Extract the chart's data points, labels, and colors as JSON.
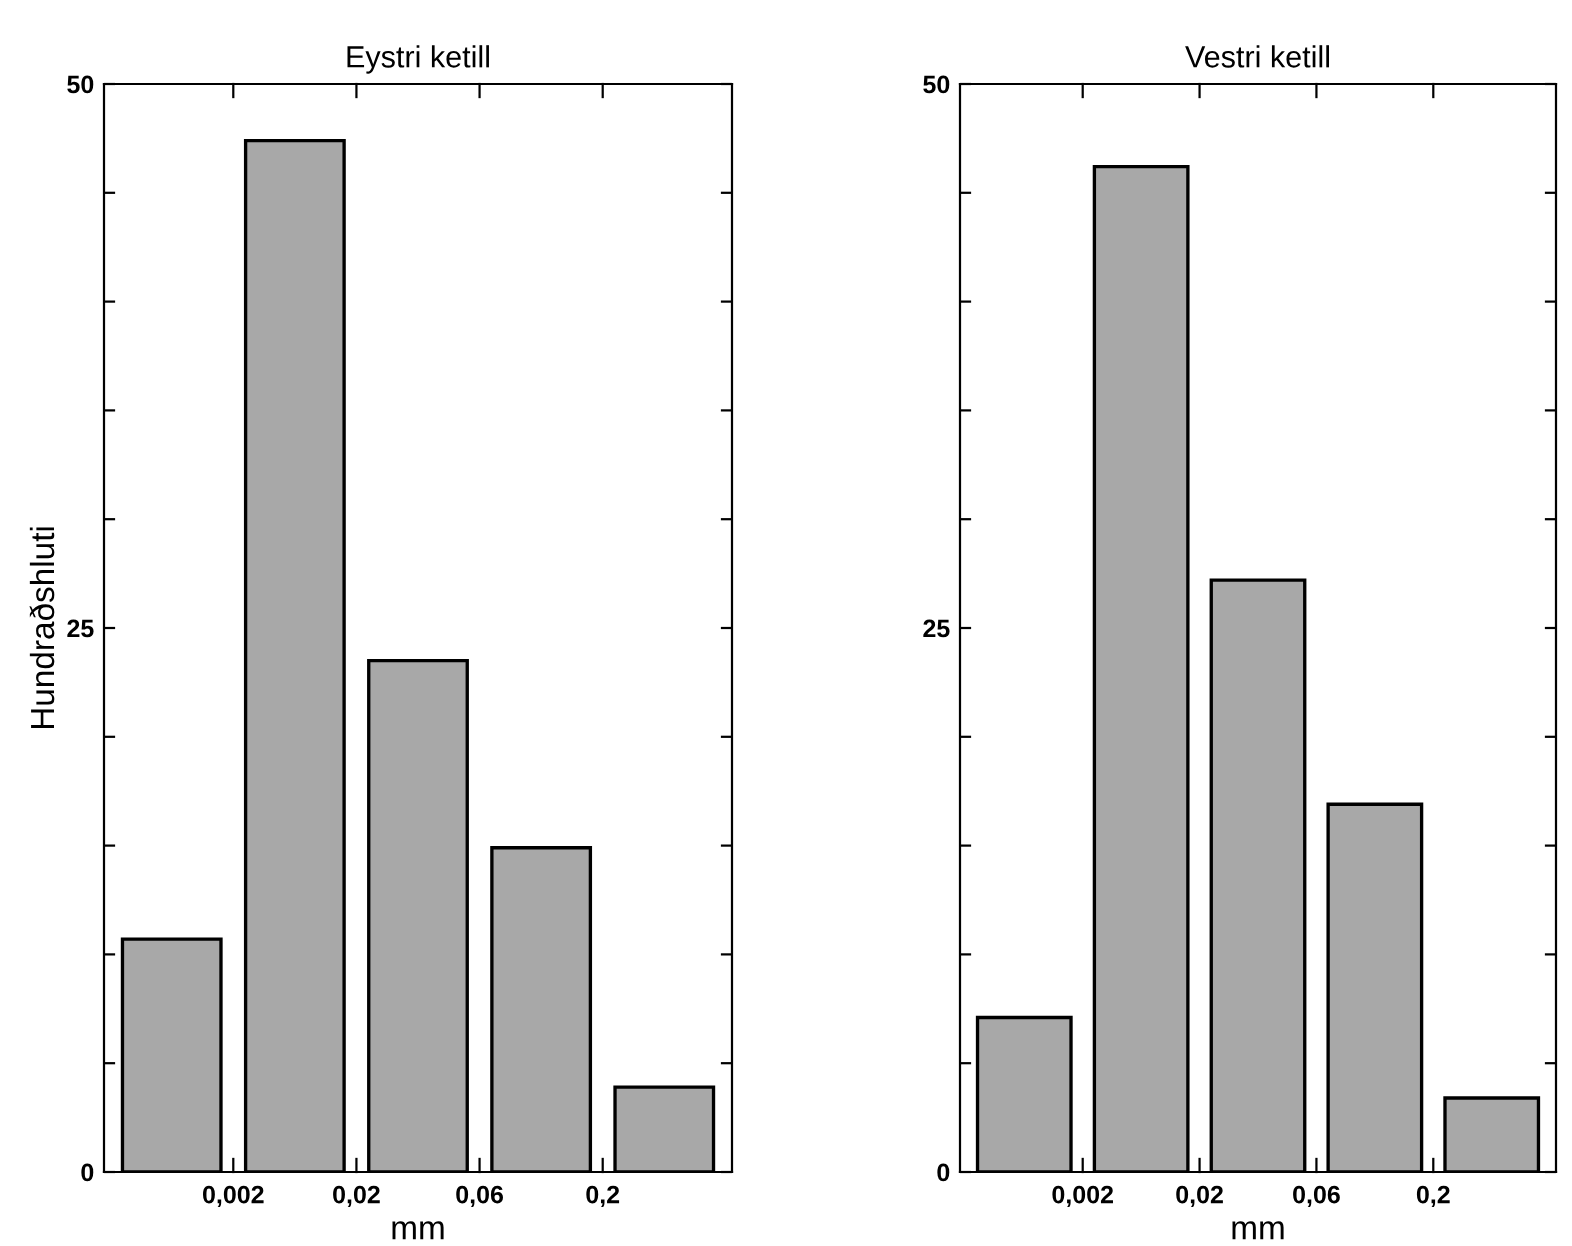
{
  "chart_data": [
    {
      "type": "bar",
      "title": "Eystri ketill",
      "xlabel": "mm",
      "ylabel": "Hundraðshluti",
      "categories": [
        null,
        null,
        null,
        null,
        null
      ],
      "values": [
        10.7,
        47.4,
        23.5,
        14.9,
        3.9
      ],
      "color": "#a8a8a8",
      "annotations": [
        "0,002",
        "0,02",
        "0,06",
        "0,2"
      ],
      "ylim": [
        0,
        50
      ],
      "yticks": [
        0,
        {
          "value": 5,
          "label": null
        },
        {
          "value": 10,
          "label": null
        },
        {
          "value": 15,
          "label": null
        },
        {
          "value": 20,
          "label": null
        },
        25,
        {
          "value": 30,
          "label": null
        },
        {
          "value": 35,
          "label": null
        },
        {
          "value": 40,
          "label": null
        },
        {
          "value": 45,
          "label": null
        },
        50
      ],
      "grid": false
    },
    {
      "type": "bar",
      "title": "Vestri ketill",
      "xlabel": "mm",
      "categories": [
        null,
        null,
        null,
        null,
        null
      ],
      "values": [
        7.1,
        46.2,
        27.2,
        16.9,
        3.4
      ],
      "color": "#a8a8a8",
      "annotations": [
        "0,002",
        "0,02",
        "0,06",
        "0,2"
      ],
      "ylim": [
        0,
        50
      ],
      "yticks": [
        0,
        {
          "value": 5,
          "label": null
        },
        {
          "value": 10,
          "label": null
        },
        {
          "value": 15,
          "label": null
        },
        {
          "value": 20,
          "label": null
        },
        25,
        {
          "value": 30,
          "label": null
        },
        {
          "value": 35,
          "label": null
        },
        {
          "value": 40,
          "label": null
        },
        {
          "value": 45,
          "label": null
        },
        50
      ],
      "grid": false
    }
  ]
}
